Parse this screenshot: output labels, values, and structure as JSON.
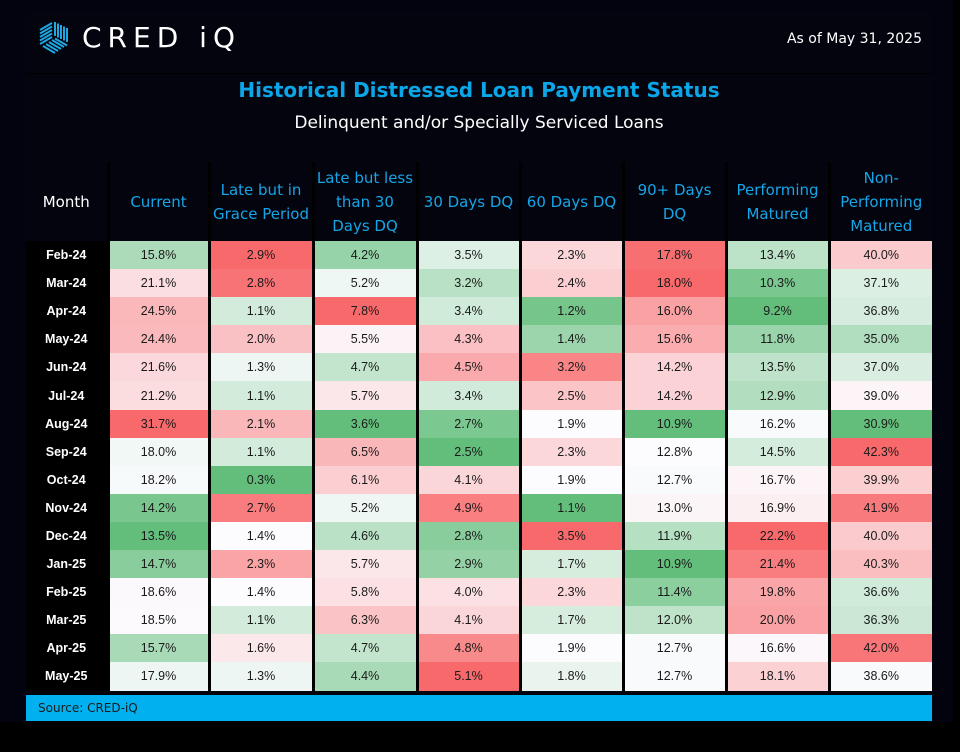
{
  "header": {
    "brand": "CRED iQ",
    "logo_icon": "hexagon-stripes-icon",
    "as_of": "As of May 31, 2025"
  },
  "title": "Historical Distressed Loan Payment Status",
  "subtitle": "Delinquent and/or Specially Serviced Loans",
  "source": "Source:  CRED-iQ",
  "colors": {
    "title": "#0aa6e8",
    "header_text": "#16a5e6",
    "source_bar": "#00b0ef",
    "low_green": "#63be7b",
    "mid_white": "#fcfcff",
    "high_red": "#f8696b"
  },
  "chart_data": {
    "type": "table",
    "title": "Historical Distressed Loan Payment Status",
    "subtitle": "Delinquent and/or Specially Serviced Loans",
    "color_scale": "per-column heatmap: low = green, mid = white, high = red",
    "columns": [
      "Month",
      "Current",
      "Late but in Grace Period",
      "Late but less than 30 Days DQ",
      "30 Days DQ",
      "60 Days DQ",
      "90+ Days DQ",
      "Performing Matured",
      "Non-Performing Matured"
    ],
    "rows": [
      {
        "month": "Feb-24",
        "values": [
          "15.8%",
          "2.9%",
          "4.2%",
          "3.5%",
          "2.3%",
          "17.8%",
          "13.4%",
          "40.0%"
        ]
      },
      {
        "month": "Mar-24",
        "values": [
          "21.1%",
          "2.8%",
          "5.2%",
          "3.2%",
          "2.4%",
          "18.0%",
          "10.3%",
          "37.1%"
        ]
      },
      {
        "month": "Apr-24",
        "values": [
          "24.5%",
          "1.1%",
          "7.8%",
          "3.4%",
          "1.2%",
          "16.0%",
          "9.2%",
          "36.8%"
        ]
      },
      {
        "month": "May-24",
        "values": [
          "24.4%",
          "2.0%",
          "5.5%",
          "4.3%",
          "1.4%",
          "15.6%",
          "11.8%",
          "35.0%"
        ]
      },
      {
        "month": "Jun-24",
        "values": [
          "21.6%",
          "1.3%",
          "4.7%",
          "4.5%",
          "3.2%",
          "14.2%",
          "13.5%",
          "37.0%"
        ]
      },
      {
        "month": "Jul-24",
        "values": [
          "21.2%",
          "1.1%",
          "5.7%",
          "3.4%",
          "2.5%",
          "14.2%",
          "12.9%",
          "39.0%"
        ]
      },
      {
        "month": "Aug-24",
        "values": [
          "31.7%",
          "2.1%",
          "3.6%",
          "2.7%",
          "1.9%",
          "10.9%",
          "16.2%",
          "30.9%"
        ]
      },
      {
        "month": "Sep-24",
        "values": [
          "18.0%",
          "1.1%",
          "6.5%",
          "2.5%",
          "2.3%",
          "12.8%",
          "14.5%",
          "42.3%"
        ]
      },
      {
        "month": "Oct-24",
        "values": [
          "18.2%",
          "0.3%",
          "6.1%",
          "4.1%",
          "1.9%",
          "12.7%",
          "16.7%",
          "39.9%"
        ]
      },
      {
        "month": "Nov-24",
        "values": [
          "14.2%",
          "2.7%",
          "5.2%",
          "4.9%",
          "1.1%",
          "13.0%",
          "16.9%",
          "41.9%"
        ]
      },
      {
        "month": "Dec-24",
        "values": [
          "13.5%",
          "1.4%",
          "4.6%",
          "2.8%",
          "3.5%",
          "11.9%",
          "22.2%",
          "40.0%"
        ]
      },
      {
        "month": "Jan-25",
        "values": [
          "14.7%",
          "2.3%",
          "5.7%",
          "2.9%",
          "1.7%",
          "10.9%",
          "21.4%",
          "40.3%"
        ]
      },
      {
        "month": "Feb-25",
        "values": [
          "18.6%",
          "1.4%",
          "5.8%",
          "4.0%",
          "2.3%",
          "11.4%",
          "19.8%",
          "36.6%"
        ]
      },
      {
        "month": "Mar-25",
        "values": [
          "18.5%",
          "1.1%",
          "6.3%",
          "4.1%",
          "1.7%",
          "12.0%",
          "20.0%",
          "36.3%"
        ]
      },
      {
        "month": "Apr-25",
        "values": [
          "15.7%",
          "1.6%",
          "4.7%",
          "4.8%",
          "1.9%",
          "12.7%",
          "16.6%",
          "42.0%"
        ]
      },
      {
        "month": "May-25",
        "values": [
          "17.9%",
          "1.3%",
          "4.4%",
          "5.1%",
          "1.8%",
          "12.7%",
          "18.1%",
          "38.6%"
        ]
      }
    ]
  }
}
